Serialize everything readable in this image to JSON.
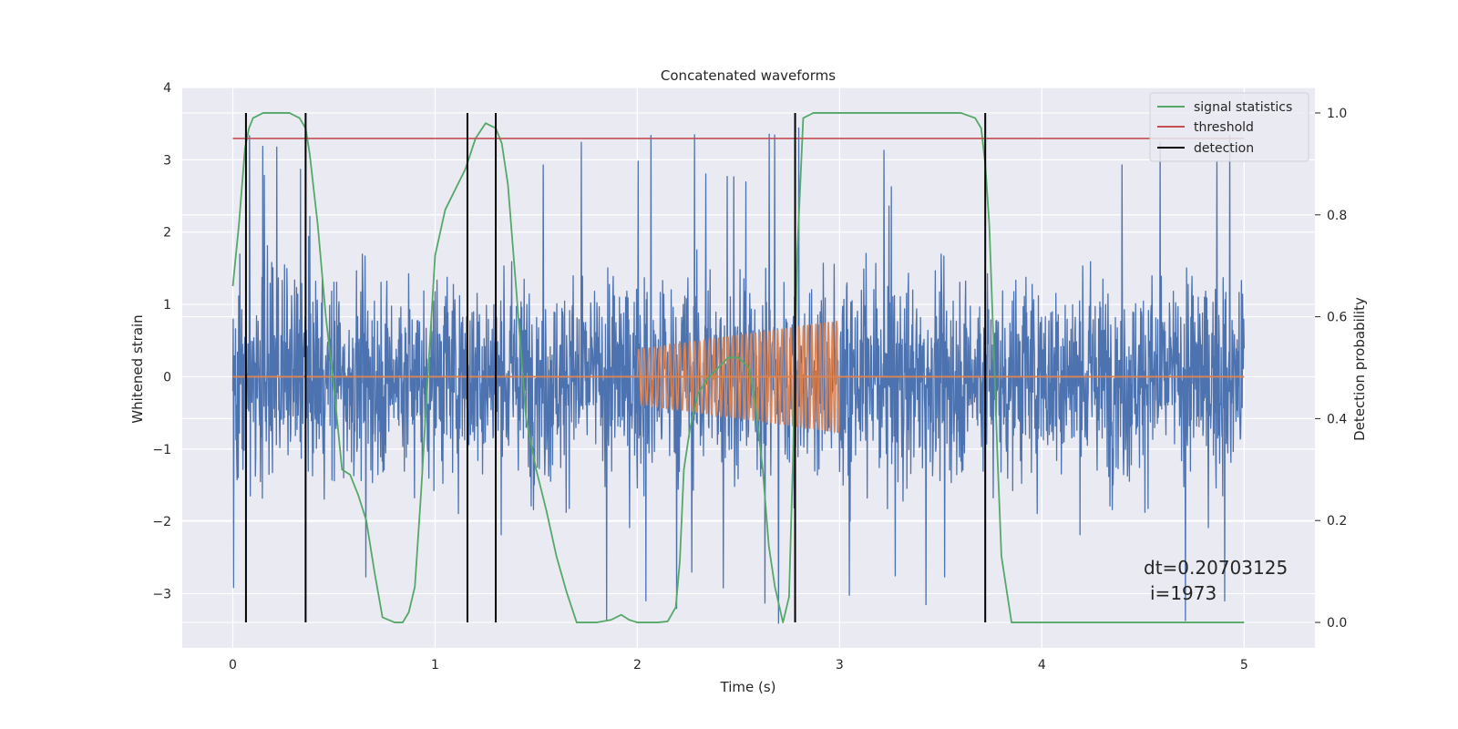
{
  "chart_data": {
    "type": "line",
    "title": "Concatenated waveforms",
    "xlabel": "Time (s)",
    "ylabel_left": "Whitened strain",
    "ylabel_right": "Detection probability",
    "xlim": [
      -0.25,
      5.35
    ],
    "ylim_left": [
      -3.75,
      4.0
    ],
    "ylim_right": [
      -0.05,
      1.05
    ],
    "x_ticks": [
      0,
      1,
      2,
      3,
      4,
      5
    ],
    "x_tick_labels": [
      "0",
      "1",
      "2",
      "3",
      "4",
      "5"
    ],
    "y_ticks_left": [
      -3,
      -2,
      -1,
      0,
      1,
      2,
      3,
      4
    ],
    "y_tick_labels_left": [
      "−3",
      "−2",
      "−1",
      "0",
      "1",
      "2",
      "3",
      "4"
    ],
    "y_ticks_right": [
      0.0,
      0.2,
      0.4,
      0.6,
      0.8,
      1.0
    ],
    "y_tick_labels_right": [
      "0.0",
      "0.2",
      "0.4",
      "0.6",
      "0.8",
      "1.0"
    ],
    "grid": true,
    "legend_position": "top-right",
    "strain_series": {
      "name": "whitened strain",
      "x_range": [
        0,
        5
      ],
      "typical_amplitude": 1.3,
      "peak_amplitude": 3.5,
      "color": "#4c72b0"
    },
    "injected_signal": {
      "name": "injected waveform",
      "x_start": 2.0,
      "x_end": 3.0,
      "amplitude_start": 0.38,
      "amplitude_end": 0.78,
      "cycles": 38,
      "color": "#dd8452"
    },
    "signal_statistics": {
      "name": "signal statistics",
      "color": "#55a868",
      "x": [
        0.0,
        0.03,
        0.06,
        0.08,
        0.1,
        0.15,
        0.2,
        0.28,
        0.33,
        0.36,
        0.38,
        0.42,
        0.46,
        0.5,
        0.54,
        0.58,
        0.62,
        0.66,
        0.7,
        0.74,
        0.8,
        0.84,
        0.87,
        0.9,
        0.93,
        0.97,
        1.0,
        1.05,
        1.1,
        1.15,
        1.2,
        1.25,
        1.3,
        1.33,
        1.36,
        1.4,
        1.45,
        1.5,
        1.55,
        1.6,
        1.65,
        1.7,
        1.8,
        1.87,
        1.92,
        1.96,
        2.0,
        2.1,
        2.15,
        2.19,
        2.21,
        2.23,
        2.26,
        2.3,
        2.35,
        2.4,
        2.45,
        2.5,
        2.55,
        2.58,
        2.62,
        2.65,
        2.68,
        2.72,
        2.75,
        2.77,
        2.79,
        2.82,
        2.87,
        3.0,
        3.2,
        3.4,
        3.6,
        3.67,
        3.7,
        3.72,
        3.74,
        3.76,
        3.78,
        3.8,
        3.85,
        4.0,
        4.5,
        5.0
      ],
      "y": [
        0.66,
        0.78,
        0.93,
        0.97,
        0.99,
        1.0,
        1.0,
        1.0,
        0.99,
        0.97,
        0.92,
        0.78,
        0.6,
        0.46,
        0.3,
        0.29,
        0.25,
        0.2,
        0.1,
        0.01,
        0.0,
        0.0,
        0.02,
        0.07,
        0.25,
        0.52,
        0.72,
        0.81,
        0.85,
        0.89,
        0.95,
        0.98,
        0.97,
        0.94,
        0.86,
        0.66,
        0.4,
        0.3,
        0.22,
        0.13,
        0.06,
        0.0,
        0.0,
        0.005,
        0.015,
        0.005,
        0.0,
        0.0,
        0.002,
        0.03,
        0.12,
        0.3,
        0.38,
        0.45,
        0.48,
        0.5,
        0.52,
        0.52,
        0.5,
        0.44,
        0.3,
        0.15,
        0.07,
        0.0,
        0.05,
        0.33,
        0.72,
        0.99,
        1.0,
        1.0,
        1.0,
        1.0,
        1.0,
        0.99,
        0.97,
        0.9,
        0.78,
        0.56,
        0.33,
        0.13,
        0.0,
        0.0,
        0.0,
        0.0
      ]
    },
    "threshold": {
      "name": "threshold",
      "value": 0.95,
      "x_range": [
        0,
        5
      ],
      "color": "#c44e52"
    },
    "detections": {
      "name": "detection",
      "color": "#000000",
      "x": [
        0.065,
        0.36,
        1.16,
        1.3,
        2.78,
        3.72
      ],
      "y_range": [
        0.0,
        1.0
      ]
    },
    "legend": [
      "signal statistics",
      "threshold",
      "detection"
    ],
    "annotation_lines": [
      "dt=0.20703125",
      "i=1973"
    ]
  }
}
